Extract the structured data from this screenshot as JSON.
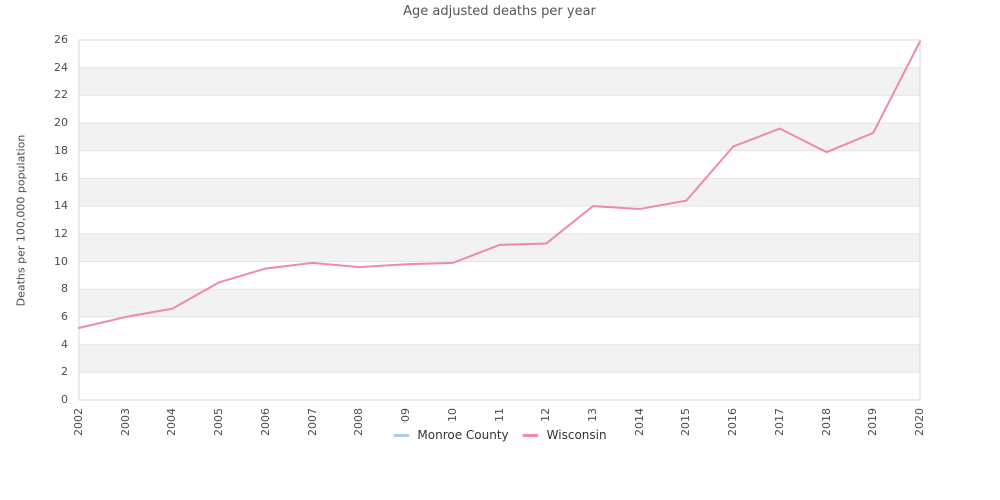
{
  "chart_data": {
    "type": "line",
    "title": "Age adjusted deaths per year",
    "xlabel": "",
    "ylabel": "Deaths per 100,000 population",
    "categories": [
      "2002",
      "2003",
      "2004",
      "2005",
      "2006",
      "2007",
      "2008",
      "2009",
      "2010",
      "2011",
      "2012",
      "2013",
      "2014",
      "2015",
      "2016",
      "2017",
      "2018",
      "2019",
      "2020"
    ],
    "series": [
      {
        "name": "Monroe County",
        "color": "#a9cee5",
        "values": []
      },
      {
        "name": "Wisconsin",
        "color": "#f087b4",
        "values": [
          5.2,
          6.0,
          6.6,
          8.5,
          9.5,
          9.9,
          9.6,
          9.8,
          9.9,
          11.2,
          11.3,
          14.0,
          13.8,
          14.4,
          18.3,
          19.6,
          17.9,
          19.3,
          25.9
        ]
      }
    ],
    "ylim": [
      0,
      26
    ],
    "yticks": [
      0,
      2,
      4,
      6,
      8,
      10,
      12,
      14,
      16,
      18,
      20,
      22,
      24,
      26
    ],
    "grid": true,
    "legend_position": "bottom",
    "band_color": "#f2f2f2",
    "gridline_color": "#e4e4e4",
    "border_color": "#d8d8d8"
  }
}
